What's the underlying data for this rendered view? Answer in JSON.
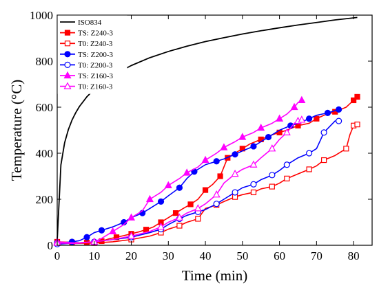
{
  "chart_data": {
    "type": "line",
    "xlabel": "Time (min)",
    "ylabel": "Temperature (°C)",
    "xlim": [
      0,
      85
    ],
    "ylim": [
      0,
      1000
    ],
    "xticks": [
      0,
      10,
      20,
      30,
      40,
      50,
      60,
      70,
      80
    ],
    "yticks": [
      0,
      200,
      400,
      600,
      800,
      1000
    ],
    "grid": false,
    "legend_position": "top-left",
    "series": [
      {
        "name": "ISO834",
        "color": "#000000",
        "marker": "none",
        "x": [
          0,
          1,
          2,
          3,
          4,
          5,
          6,
          8,
          10,
          12,
          15,
          20,
          25,
          30,
          35,
          40,
          45,
          50,
          55,
          60,
          65,
          70,
          75,
          80,
          81
        ],
        "y": [
          20,
          349,
          445,
          502,
          544,
          576,
          603,
          645,
          678,
          705,
          739,
          781,
          815,
          842,
          865,
          885,
          902,
          918,
          932,
          945,
          957,
          968,
          979,
          988,
          990
        ]
      },
      {
        "name": "TS: Z240-3",
        "color": "#ff0000",
        "marker": "square-filled",
        "x": [
          0,
          2,
          4,
          6,
          8,
          10,
          12,
          14,
          16,
          18,
          20,
          22,
          24,
          26,
          28,
          30,
          32,
          34,
          36,
          38,
          40,
          42,
          44,
          45,
          46,
          48,
          50,
          52,
          55,
          58,
          60,
          62,
          65,
          68,
          70,
          72,
          75,
          78,
          80,
          81
        ],
        "y": [
          15,
          14,
          12,
          11,
          12,
          14,
          18,
          28,
          35,
          42,
          50,
          58,
          68,
          80,
          100,
          120,
          140,
          160,
          178,
          200,
          240,
          265,
          300,
          340,
          380,
          400,
          420,
          440,
          460,
          480,
          490,
          500,
          520,
          530,
          550,
          565,
          580,
          600,
          630,
          645
        ]
      },
      {
        "name": "T0: Z240-3",
        "color": "#ff0000",
        "marker": "square-open",
        "x": [
          0,
          5,
          10,
          15,
          20,
          25,
          28,
          30,
          33,
          35,
          38,
          40,
          43,
          45,
          48,
          50,
          53,
          55,
          58,
          60,
          62,
          65,
          68,
          70,
          72,
          75,
          78,
          79,
          80,
          81
        ],
        "y": [
          10,
          8,
          10,
          15,
          25,
          40,
          55,
          70,
          85,
          100,
          115,
          160,
          175,
          190,
          210,
          220,
          230,
          245,
          255,
          270,
          290,
          310,
          330,
          345,
          370,
          390,
          420,
          480,
          520,
          525
        ]
      },
      {
        "name": "TS: Z200-3",
        "color": "#0000ff",
        "marker": "circle-filled",
        "x": [
          0,
          2,
          4,
          6,
          8,
          10,
          12,
          15,
          18,
          20,
          23,
          25,
          28,
          30,
          33,
          35,
          37,
          40,
          43,
          45,
          48,
          50,
          53,
          55,
          57,
          60,
          63,
          65,
          68,
          70,
          73,
          75,
          76
        ],
        "y": [
          10,
          12,
          15,
          20,
          35,
          55,
          65,
          80,
          100,
          120,
          140,
          160,
          190,
          215,
          250,
          290,
          320,
          350,
          365,
          375,
          395,
          410,
          430,
          450,
          470,
          500,
          520,
          530,
          550,
          565,
          575,
          585,
          590
        ]
      },
      {
        "name": "T0: Z200-3",
        "color": "#0000ff",
        "marker": "circle-open",
        "x": [
          0,
          5,
          10,
          15,
          20,
          25,
          28,
          30,
          33,
          35,
          38,
          40,
          43,
          45,
          48,
          50,
          53,
          55,
          58,
          60,
          62,
          65,
          68,
          70,
          72,
          75,
          76
        ],
        "y": [
          5,
          10,
          15,
          25,
          35,
          55,
          70,
          90,
          115,
          130,
          145,
          155,
          180,
          200,
          230,
          250,
          265,
          285,
          305,
          325,
          350,
          380,
          400,
          420,
          490,
          540,
          540
        ]
      },
      {
        "name": "TS: Z160-3",
        "color": "#ff00ff",
        "marker": "triangle-filled",
        "x": [
          0,
          5,
          10,
          12,
          15,
          18,
          20,
          23,
          25,
          28,
          30,
          33,
          35,
          38,
          40,
          43,
          45,
          48,
          50,
          53,
          55,
          58,
          60,
          62,
          64,
          65,
          66
        ],
        "y": [
          15,
          10,
          15,
          30,
          60,
          90,
          120,
          150,
          200,
          230,
          260,
          290,
          315,
          340,
          370,
          400,
          425,
          450,
          470,
          490,
          510,
          530,
          550,
          570,
          600,
          620,
          630
        ]
      },
      {
        "name": "T0: Z160-3",
        "color": "#ff00ff",
        "marker": "triangle-open",
        "x": [
          0,
          5,
          10,
          15,
          20,
          25,
          28,
          30,
          33,
          35,
          38,
          40,
          43,
          45,
          48,
          50,
          53,
          55,
          58,
          60,
          62,
          64,
          65,
          66
        ],
        "y": [
          10,
          8,
          15,
          25,
          40,
          60,
          80,
          100,
          120,
          140,
          160,
          180,
          220,
          270,
          310,
          330,
          350,
          380,
          420,
          460,
          490,
          530,
          540,
          545
        ]
      }
    ]
  }
}
